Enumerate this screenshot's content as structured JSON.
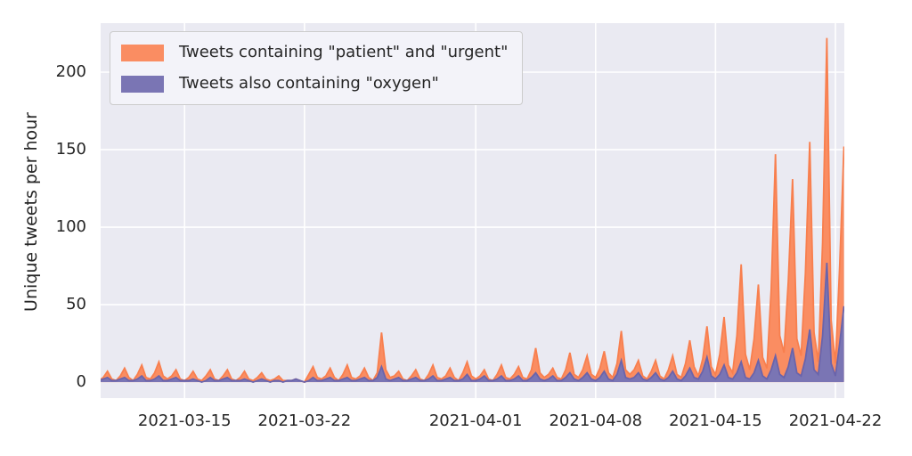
{
  "figure": {
    "background": "#ffffff",
    "plot_background": "#eaeaf2",
    "grid_color": "#ffffff",
    "text_color": "#262626",
    "legend_background": "#f3f3f9",
    "legend_border": "#cccccc"
  },
  "chart_data": {
    "type": "area",
    "title": "",
    "xlabel": "",
    "ylabel": "Unique tweets per hour",
    "grid": true,
    "legend_position": "upper left",
    "x_unit": "days since 2021-03-10 00:00",
    "sample_interval_days": 0.25,
    "t_start": 0,
    "x_range": [
      0.1,
      43.52
    ],
    "y_range": [
      -10.3,
      231.6
    ],
    "y_baseline": 0,
    "x_ticks": [
      {
        "t": 5,
        "label": "2021-03-15"
      },
      {
        "t": 12,
        "label": "2021-03-22"
      },
      {
        "t": 22,
        "label": "2021-04-01"
      },
      {
        "t": 29,
        "label": "2021-04-08"
      },
      {
        "t": 36,
        "label": "2021-04-15"
      },
      {
        "t": 43,
        "label": "2021-04-22"
      }
    ],
    "y_ticks": [
      {
        "v": 0,
        "label": "0"
      },
      {
        "v": 50,
        "label": "50"
      },
      {
        "v": 100,
        "label": "100"
      },
      {
        "v": 150,
        "label": "150"
      },
      {
        "v": 200,
        "label": "200"
      }
    ],
    "series": [
      {
        "name": "Tweets containing \"patient\" and \"urgent\"",
        "color": "#fa8d62",
        "line_color": "#f87f4e",
        "values": [
          1,
          3,
          7,
          2,
          1,
          4,
          9,
          3,
          1,
          5,
          11,
          3,
          2,
          6,
          13,
          4,
          2,
          4,
          8,
          2,
          1,
          3,
          7,
          2,
          1,
          4,
          8,
          2,
          1,
          4,
          8,
          2,
          1,
          3,
          7,
          2,
          1,
          3,
          6,
          2,
          1,
          2,
          4,
          1,
          1,
          1,
          2,
          1,
          0,
          5,
          10,
          3,
          2,
          4,
          9,
          3,
          1,
          5,
          11,
          3,
          2,
          4,
          9,
          3,
          1,
          6,
          32,
          8,
          3,
          4,
          7,
          2,
          1,
          4,
          8,
          2,
          1,
          5,
          11,
          3,
          2,
          4,
          9,
          3,
          1,
          6,
          13,
          4,
          2,
          4,
          8,
          2,
          1,
          5,
          11,
          3,
          2,
          5,
          10,
          3,
          2,
          8,
          22,
          6,
          3,
          5,
          9,
          3,
          2,
          8,
          19,
          5,
          3,
          8,
          17,
          5,
          3,
          9,
          20,
          6,
          3,
          12,
          33,
          8,
          5,
          8,
          14,
          4,
          2,
          7,
          14,
          4,
          2,
          8,
          17,
          5,
          3,
          12,
          27,
          10,
          4,
          15,
          36,
          10,
          5,
          18,
          42,
          11,
          6,
          30,
          76,
          18,
          8,
          28,
          63,
          16,
          9,
          60,
          147,
          30,
          19,
          65,
          131,
          28,
          17,
          70,
          155,
          32,
          13,
          90,
          222,
          40,
          12,
          75,
          152
        ]
      },
      {
        "name": "Tweets also containing \"oxygen\"",
        "color": "#7a75b4",
        "line_color": "#6a64ab",
        "values": [
          1,
          2,
          3,
          1,
          1,
          2,
          3,
          1,
          1,
          2,
          4,
          1,
          1,
          2,
          4,
          1,
          1,
          2,
          3,
          1,
          1,
          1,
          2,
          1,
          0,
          1,
          3,
          1,
          1,
          2,
          3,
          1,
          1,
          1,
          2,
          1,
          0,
          1,
          2,
          1,
          0,
          1,
          1,
          0,
          1,
          1,
          2,
          1,
          0,
          1,
          3,
          1,
          1,
          2,
          3,
          1,
          1,
          2,
          3,
          1,
          1,
          2,
          3,
          1,
          1,
          3,
          10,
          2,
          1,
          2,
          3,
          1,
          1,
          2,
          3,
          1,
          1,
          2,
          4,
          1,
          1,
          2,
          3,
          1,
          1,
          2,
          5,
          1,
          1,
          2,
          4,
          1,
          1,
          2,
          4,
          1,
          1,
          2,
          4,
          1,
          1,
          3,
          6,
          2,
          1,
          2,
          4,
          1,
          1,
          3,
          6,
          2,
          1,
          3,
          6,
          2,
          1,
          3,
          7,
          2,
          1,
          5,
          14,
          3,
          2,
          3,
          6,
          2,
          1,
          3,
          6,
          2,
          1,
          3,
          7,
          2,
          1,
          4,
          9,
          3,
          2,
          7,
          16,
          4,
          2,
          5,
          11,
          3,
          2,
          6,
          13,
          3,
          2,
          6,
          14,
          4,
          2,
          8,
          17,
          5,
          3,
          10,
          22,
          6,
          4,
          15,
          34,
          8,
          5,
          30,
          77,
          12,
          4,
          25,
          49
        ]
      }
    ]
  }
}
